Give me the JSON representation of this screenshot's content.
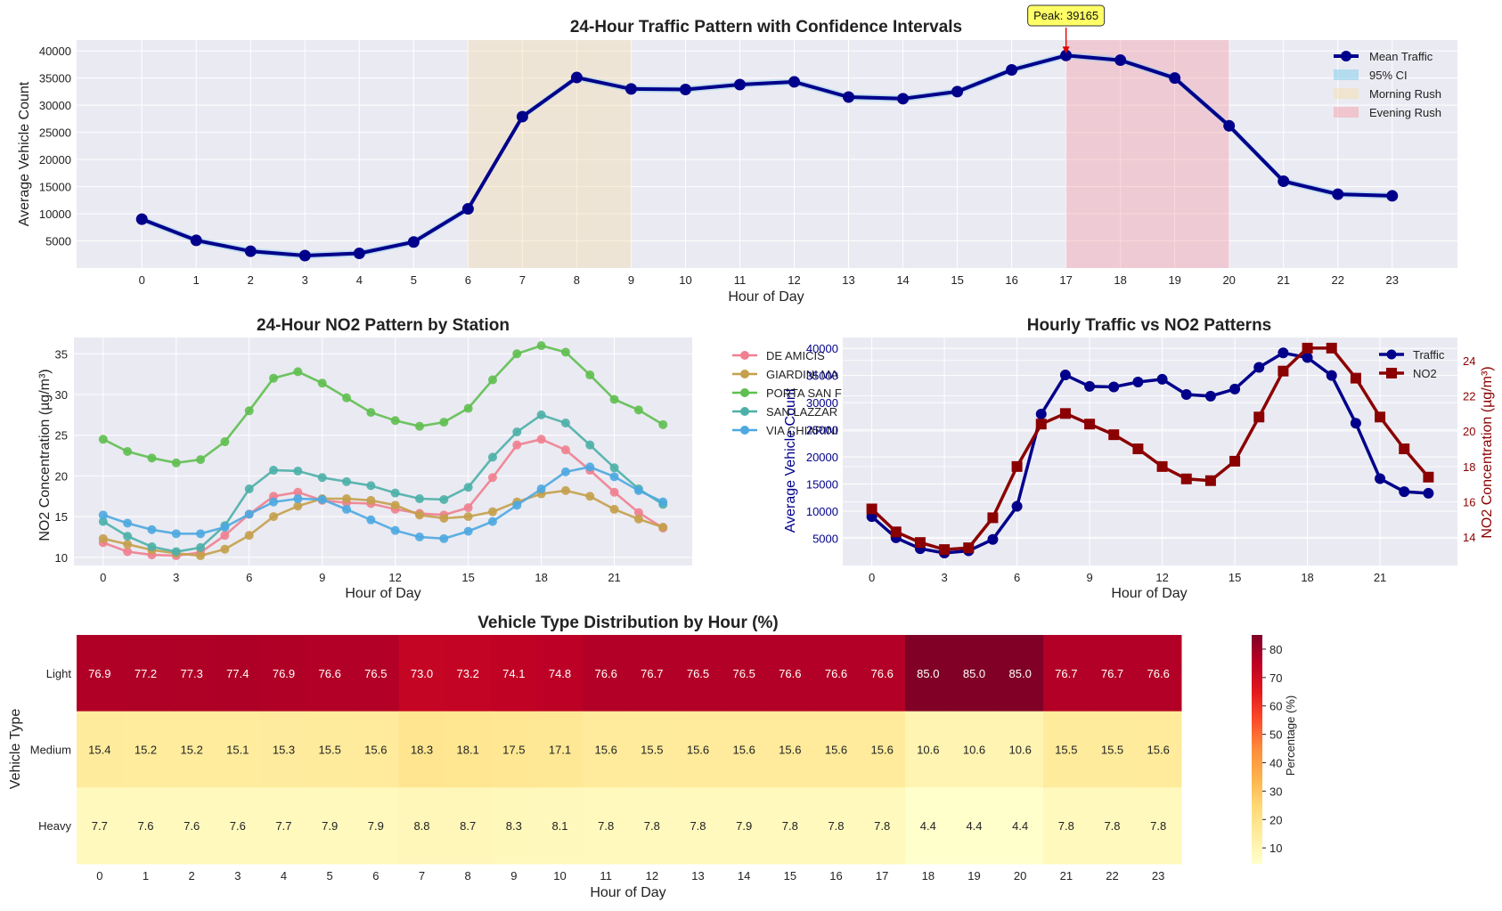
{
  "traffic_chart": {
    "title": "24-Hour Traffic Pattern with Confidence Intervals",
    "xlabel": "Hour of Day",
    "ylabel": "Average Vehicle Count",
    "peak_label": "Peak: 39165",
    "legend": [
      "Mean Traffic",
      "95% CI",
      "Morning Rush",
      "Evening Rush"
    ]
  },
  "no2_chart": {
    "title": "24-Hour NO2 Pattern by Station",
    "xlabel": "Hour of Day",
    "ylabel": "NO2 Concentration (µg/m³)",
    "legend_labels": [
      "DE AMICIS",
      "GIARDINI MA",
      "PORTA SAN F",
      "SAN LAZZAR",
      "VIA CHIARINI"
    ]
  },
  "dual_chart": {
    "title": "Hourly Traffic vs NO2 Patterns",
    "xlabel": "Hour of Day",
    "ylabel_left": "Average Vehicle Count",
    "ylabel_right": "NO2 Concentration (µg/m³)",
    "legend": [
      "Traffic",
      "NO2"
    ]
  },
  "heatmap": {
    "title": "Vehicle Type Distribution by Hour (%)",
    "xlabel": "Hour of Day",
    "ylabel": "Vehicle Type",
    "colorbar_label": "Percentage (%)"
  },
  "chart_data": [
    {
      "type": "line",
      "title": "24-Hour Traffic Pattern with Confidence Intervals",
      "xlabel": "Hour of Day",
      "ylabel": "Average Vehicle Count",
      "x": [
        0,
        1,
        2,
        3,
        4,
        5,
        6,
        7,
        8,
        9,
        10,
        11,
        12,
        13,
        14,
        15,
        16,
        17,
        18,
        19,
        20,
        21,
        22,
        23
      ],
      "series": [
        {
          "name": "Mean Traffic",
          "color": "#00008b",
          "values": [
            9000,
            5100,
            3100,
            2300,
            2700,
            4800,
            10900,
            27900,
            35100,
            33000,
            32900,
            33800,
            34300,
            31500,
            31200,
            32500,
            36500,
            39165,
            38300,
            35000,
            26200,
            16000,
            13600,
            13300
          ]
        }
      ],
      "ci_halfwidth": 600,
      "shaded_spans": [
        {
          "name": "Morning Rush",
          "from": 6,
          "to": 9,
          "color": "#f5deb3"
        },
        {
          "name": "Evening Rush",
          "from": 17,
          "to": 20,
          "color": "#f4a6b0"
        }
      ],
      "annotation": {
        "text": "Peak: 39165",
        "x": 17,
        "y": 39165
      },
      "ylim": [
        0,
        42000
      ],
      "yticks": [
        5000,
        10000,
        15000,
        20000,
        25000,
        30000,
        35000,
        40000
      ],
      "xlim": [
        -1.2,
        24.2
      ],
      "legend_position": "upper-right",
      "grid": true
    },
    {
      "type": "line",
      "title": "24-Hour NO2 Pattern by Station",
      "xlabel": "Hour of Day",
      "ylabel": "NO2 Concentration (µg/m³)",
      "x": [
        0,
        1,
        2,
        3,
        4,
        5,
        6,
        7,
        8,
        9,
        10,
        11,
        12,
        13,
        14,
        15,
        16,
        17,
        18,
        19,
        20,
        21,
        22,
        23
      ],
      "series": [
        {
          "name": "DE AMICIS",
          "color": "#f0808f",
          "values": [
            11.8,
            10.7,
            10.3,
            10.2,
            10.6,
            12.7,
            15.3,
            17.5,
            18.0,
            17.0,
            16.7,
            16.6,
            15.9,
            15.4,
            15.2,
            16.1,
            19.8,
            23.8,
            24.5,
            23.2,
            20.7,
            18.0,
            15.5,
            13.6
          ]
        },
        {
          "name": "GIARDINI MA",
          "color": "#c4a04b",
          "values": [
            12.3,
            11.6,
            10.9,
            10.5,
            10.2,
            11.0,
            12.7,
            15.0,
            16.3,
            17.2,
            17.2,
            17.0,
            16.4,
            15.2,
            14.8,
            15.0,
            15.6,
            16.8,
            17.8,
            18.2,
            17.5,
            15.9,
            14.7,
            13.7
          ]
        },
        {
          "name": "PORTA SAN F",
          "color": "#5fbf50",
          "values": [
            24.5,
            23.0,
            22.2,
            21.6,
            22.0,
            24.2,
            28.0,
            32.0,
            32.8,
            31.4,
            29.6,
            27.8,
            26.8,
            26.1,
            26.6,
            28.3,
            31.8,
            35.0,
            36.0,
            35.2,
            32.4,
            29.4,
            28.1,
            26.3
          ]
        },
        {
          "name": "SAN LAZZAR",
          "color": "#4db0a8",
          "values": [
            14.4,
            12.6,
            11.3,
            10.7,
            11.2,
            13.9,
            18.4,
            20.7,
            20.6,
            19.8,
            19.3,
            18.8,
            17.9,
            17.2,
            17.1,
            18.6,
            22.3,
            25.4,
            27.5,
            26.5,
            23.8,
            21.0,
            18.4,
            16.5
          ]
        },
        {
          "name": "VIA CHIARINI",
          "color": "#4da9e0",
          "values": [
            15.2,
            14.2,
            13.4,
            12.9,
            12.9,
            13.7,
            15.3,
            16.8,
            17.2,
            17.1,
            15.9,
            14.6,
            13.3,
            12.5,
            12.3,
            13.2,
            14.4,
            16.4,
            18.4,
            20.5,
            21.1,
            19.9,
            18.2,
            16.8
          ]
        }
      ],
      "ylim": [
        9,
        37
      ],
      "yticks": [
        10,
        15,
        20,
        25,
        30,
        35
      ],
      "xticks": [
        0,
        3,
        6,
        9,
        12,
        15,
        18,
        21
      ],
      "xlim": [
        -1.2,
        24.2
      ],
      "legend_position": "right-outside",
      "grid": true
    },
    {
      "type": "line",
      "title": "Hourly Traffic vs NO2 Patterns",
      "xlabel": "Hour of Day",
      "ylabel_left": "Average Vehicle Count",
      "ylabel_right": "NO2 Concentration (µg/m³)",
      "x": [
        0,
        1,
        2,
        3,
        4,
        5,
        6,
        7,
        8,
        9,
        10,
        11,
        12,
        13,
        14,
        15,
        16,
        17,
        18,
        19,
        20,
        21,
        22,
        23
      ],
      "series": [
        {
          "name": "Traffic",
          "axis": "left",
          "color": "#00008b",
          "values": [
            9000,
            5100,
            3100,
            2300,
            2700,
            4800,
            10900,
            27900,
            35100,
            33000,
            32900,
            33800,
            34300,
            31500,
            31200,
            32500,
            36500,
            39165,
            38300,
            35000,
            26200,
            16000,
            13600,
            13300
          ]
        },
        {
          "name": "NO2",
          "axis": "right",
          "color": "#8b0000",
          "values": [
            15.6,
            14.3,
            13.7,
            13.3,
            13.4,
            15.1,
            18.0,
            20.4,
            21.0,
            20.4,
            19.8,
            19.0,
            18.0,
            17.3,
            17.2,
            18.3,
            20.8,
            23.4,
            24.7,
            24.7,
            23.0,
            20.8,
            19.0,
            17.4
          ]
        }
      ],
      "ylim_left": [
        0,
        42000
      ],
      "yticks_left": [
        5000,
        10000,
        15000,
        20000,
        25000,
        30000,
        35000,
        40000
      ],
      "ylim_right": [
        12.4,
        25.3
      ],
      "yticks_right": [
        14,
        16,
        18,
        20,
        22,
        24
      ],
      "xticks": [
        0,
        3,
        6,
        9,
        12,
        15,
        18,
        21
      ],
      "xlim": [
        -1.2,
        24.2
      ],
      "legend_position": "upper-right",
      "grid": true
    },
    {
      "type": "heatmap",
      "title": "Vehicle Type Distribution by Hour (%)",
      "xlabel": "Hour of Day",
      "ylabel": "Vehicle Type",
      "columns": [
        "0",
        "1",
        "2",
        "3",
        "4",
        "5",
        "6",
        "7",
        "8",
        "9",
        "10",
        "11",
        "12",
        "13",
        "14",
        "15",
        "16",
        "17",
        "18",
        "19",
        "20",
        "21",
        "22",
        "23"
      ],
      "rows": [
        "Light",
        "Medium",
        "Heavy"
      ],
      "values": [
        [
          76.9,
          77.2,
          77.3,
          77.4,
          76.9,
          76.6,
          76.5,
          73.0,
          73.2,
          74.1,
          74.8,
          76.6,
          76.7,
          76.5,
          76.5,
          76.6,
          76.6,
          76.6,
          85.0,
          85.0,
          85.0,
          76.7,
          76.7,
          76.6
        ],
        [
          15.4,
          15.2,
          15.2,
          15.1,
          15.3,
          15.5,
          15.6,
          18.3,
          18.1,
          17.5,
          17.1,
          15.6,
          15.5,
          15.6,
          15.6,
          15.6,
          15.6,
          15.6,
          10.6,
          10.6,
          10.6,
          15.5,
          15.5,
          15.6
        ],
        [
          7.7,
          7.6,
          7.6,
          7.6,
          7.7,
          7.9,
          7.9,
          8.8,
          8.7,
          8.3,
          8.1,
          7.8,
          7.8,
          7.8,
          7.9,
          7.8,
          7.8,
          7.8,
          4.4,
          4.4,
          4.4,
          7.8,
          7.8,
          7.8
        ]
      ],
      "colormap": "YlOrRd",
      "vmin": 4.4,
      "vmax": 85.0,
      "colorbar_label": "Percentage (%)",
      "colorbar_ticks": [
        10,
        20,
        30,
        40,
        50,
        60,
        70,
        80
      ]
    }
  ]
}
